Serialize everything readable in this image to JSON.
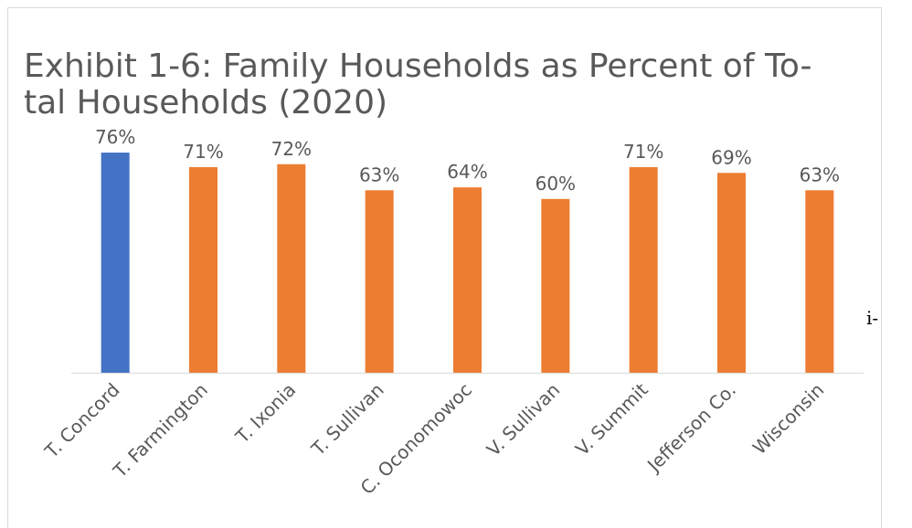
{
  "chart_data": {
    "type": "bar",
    "title": [
      "Exhibit 1-6: Family Households as Percent of To-",
      "tal Households (2020)"
    ],
    "categories": [
      "T. Concord",
      "T. Farmington",
      "T. Ixonia",
      "T. Sullivan",
      "C. Oconomowoc",
      "V. Sullivan",
      "V. Summit",
      "Jefferson Co.",
      "Wisconsin"
    ],
    "values": [
      76,
      71,
      72,
      63,
      64,
      60,
      71,
      69,
      63
    ],
    "value_labels": [
      "76%",
      "71%",
      "72%",
      "63%",
      "64%",
      "60%",
      "71%",
      "69%",
      "63%"
    ],
    "colors": [
      "#4472c4",
      "#ed7d31",
      "#ed7d31",
      "#ed7d31",
      "#ed7d31",
      "#ed7d31",
      "#ed7d31",
      "#ed7d31",
      "#ed7d31"
    ],
    "ylim": [
      0,
      100
    ],
    "annotation": "i-"
  }
}
